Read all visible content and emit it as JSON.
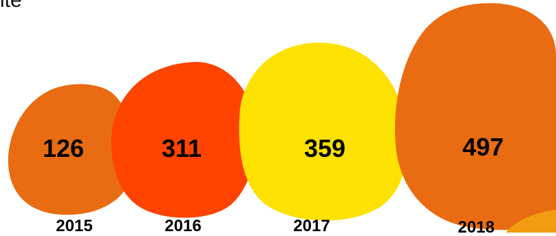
{
  "fragment_text": "ite",
  "chart_data": {
    "type": "bubble",
    "categories": [
      "2015",
      "2016",
      "2017",
      "2018"
    ],
    "values": [
      126,
      311,
      359,
      497
    ],
    "colors": [
      "#E96C12",
      "#FE4400",
      "#FDE100",
      "#E96C12"
    ],
    "accent_color": "#F39C12"
  }
}
